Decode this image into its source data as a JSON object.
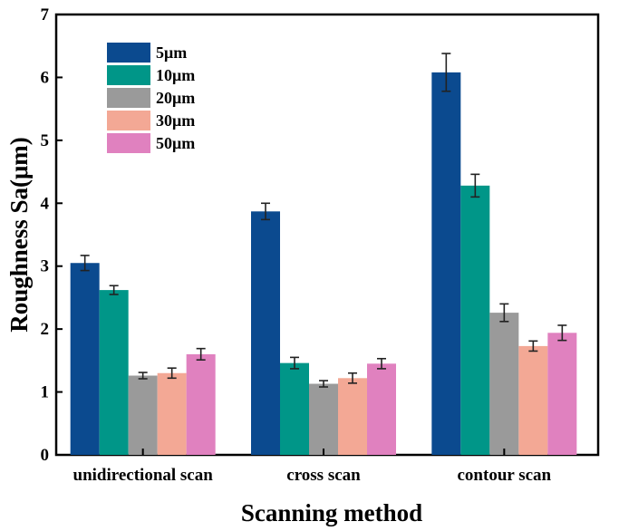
{
  "chart_data": {
    "type": "bar",
    "xlabel": "Scanning method",
    "ylabel": "Roughness Sa(μm)",
    "ylim": [
      0,
      7
    ],
    "yticks": [
      "0",
      "1",
      "2",
      "3",
      "4",
      "5",
      "6",
      "7"
    ],
    "categories": [
      "unidirectional scan",
      "cross scan",
      "contour scan"
    ],
    "legend_position": "top-left",
    "grid": false,
    "series": [
      {
        "name": "5μm",
        "color": "#0b4a8f",
        "values": [
          3.05,
          3.87,
          6.08
        ],
        "errors": [
          0.12,
          0.13,
          0.3
        ]
      },
      {
        "name": "10μm",
        "color": "#009688",
        "values": [
          2.62,
          1.46,
          4.28
        ],
        "errors": [
          0.07,
          0.09,
          0.18
        ]
      },
      {
        "name": "20μm",
        "color": "#9a9a9a",
        "values": [
          1.26,
          1.13,
          2.26
        ],
        "errors": [
          0.05,
          0.05,
          0.14
        ]
      },
      {
        "name": "30μm",
        "color": "#f3a895",
        "values": [
          1.3,
          1.22,
          1.73
        ],
        "errors": [
          0.08,
          0.08,
          0.08
        ]
      },
      {
        "name": "50μm",
        "color": "#e081bf",
        "values": [
          1.6,
          1.45,
          1.94
        ],
        "errors": [
          0.09,
          0.08,
          0.12
        ]
      }
    ]
  }
}
